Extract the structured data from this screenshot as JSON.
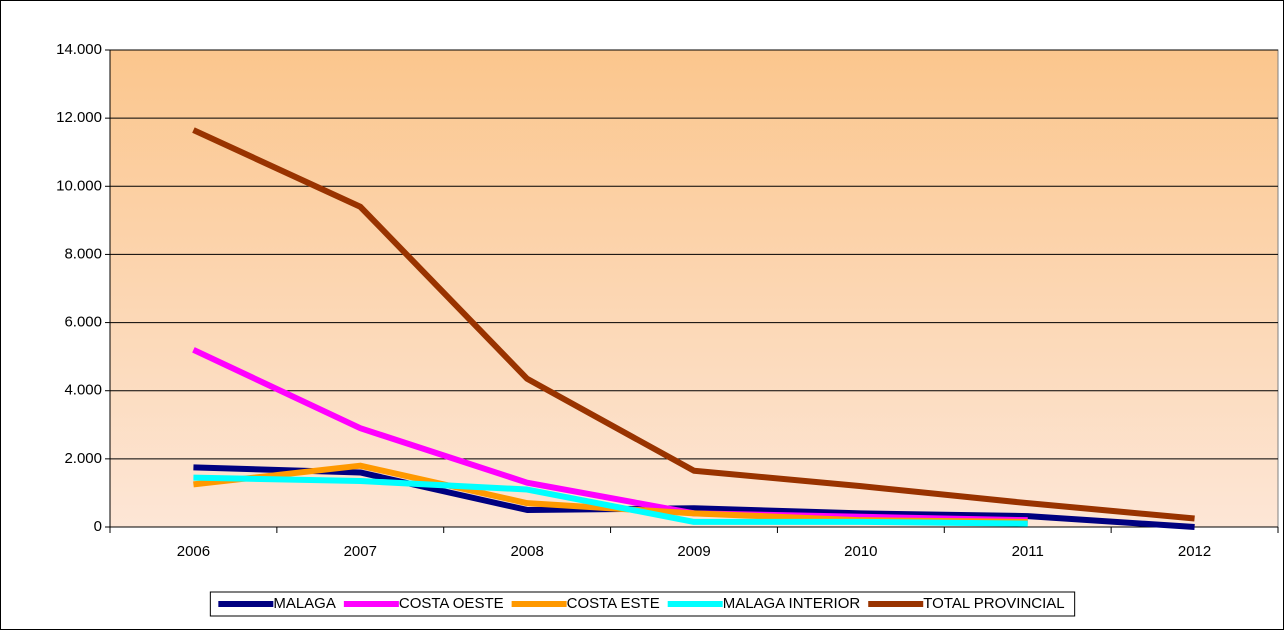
{
  "chart_data": {
    "type": "line",
    "categories": [
      "2006",
      "2007",
      "2008",
      "2009",
      "2010",
      "2011",
      "2012"
    ],
    "series": [
      {
        "name": "MALAGA",
        "color": "#000080",
        "values": [
          1750,
          1600,
          500,
          550,
          400,
          320,
          0
        ]
      },
      {
        "name": "COSTA OESTE",
        "color": "#ff00ff",
        "values": [
          5200,
          2900,
          1300,
          400,
          300,
          200,
          null
        ]
      },
      {
        "name": "COSTA ESTE",
        "color": "#ff9900",
        "values": [
          1250,
          1800,
          700,
          400,
          200,
          150,
          null
        ]
      },
      {
        "name": "MALAGA INTERIOR",
        "color": "#00ffff",
        "values": [
          1450,
          1350,
          1100,
          150,
          150,
          100,
          null
        ]
      },
      {
        "name": "TOTAL PROVINCIAL",
        "color": "#993300",
        "values": [
          11650,
          9400,
          4350,
          1650,
          1200,
          700,
          250
        ]
      }
    ],
    "ylim": [
      0,
      14000
    ],
    "yticks": [
      0,
      {
        "value": 2000,
        "label": "2.000"
      },
      {
        "value": 4000,
        "label": "4.000"
      },
      {
        "value": 6000,
        "label": "6.000"
      },
      {
        "value": 8000,
        "label": "8.000"
      },
      {
        "value": 10000,
        "label": "10.000"
      },
      {
        "value": 12000,
        "label": "12.000"
      },
      {
        "value": 14000,
        "label": "14.000"
      }
    ],
    "grid": true,
    "legend": "bottom"
  }
}
